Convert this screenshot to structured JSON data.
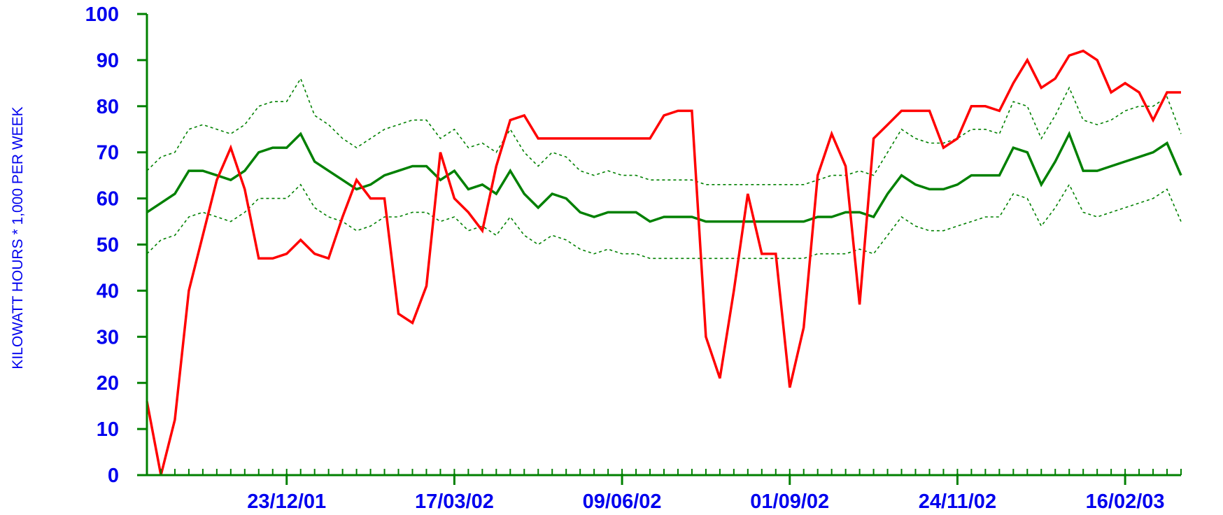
{
  "chart_data": {
    "type": "line",
    "title": "",
    "xlabel": "",
    "ylabel": "KILOWATT HOURS * 1,000 PER WEEK",
    "ylim": [
      0,
      100
    ],
    "y_ticks": [
      0,
      10,
      20,
      30,
      40,
      50,
      60,
      70,
      80,
      90,
      100
    ],
    "x_tick_labels": [
      "23/12/01",
      "17/03/02",
      "09/06/02",
      "01/09/02",
      "24/11/02",
      "16/02/03"
    ],
    "grid": false,
    "legend": "none",
    "colors": {
      "axis": "#008000",
      "tick_text": "#0000ee",
      "actual": "#ff0000",
      "average": "#008000",
      "band": "#008000"
    },
    "series": [
      {
        "style": "solid-red",
        "values": [
          16,
          0,
          12,
          40,
          52,
          64,
          71,
          62,
          47,
          47,
          48,
          51,
          48,
          47,
          56,
          64,
          60,
          60,
          35,
          33,
          41,
          70,
          60,
          57,
          53,
          67,
          77,
          78,
          73,
          73,
          73,
          73,
          73,
          73,
          73,
          73,
          73,
          78,
          79,
          79,
          30,
          21,
          40,
          61,
          48,
          48,
          19,
          32,
          65,
          74,
          67,
          37,
          73,
          76,
          79,
          79,
          79,
          71,
          73,
          80,
          80,
          79,
          85,
          90,
          84,
          86,
          91,
          92,
          90,
          83,
          85,
          83,
          77,
          83,
          83
        ]
      },
      {
        "style": "solid-green",
        "values": [
          57,
          59,
          61,
          66,
          66,
          65,
          64,
          66,
          70,
          71,
          71,
          74,
          68,
          66,
          64,
          62,
          63,
          65,
          66,
          67,
          67,
          64,
          66,
          62,
          63,
          61,
          66,
          61,
          58,
          61,
          60,
          57,
          56,
          57,
          57,
          57,
          55,
          56,
          56,
          56,
          55,
          55,
          55,
          55,
          55,
          55,
          55,
          55,
          56,
          56,
          57,
          57,
          56,
          61,
          65,
          63,
          62,
          62,
          63,
          65,
          65,
          65,
          71,
          70,
          63,
          68,
          74,
          66,
          66,
          67,
          68,
          69,
          70,
          72,
          65
        ]
      },
      {
        "style": "dashed-upper",
        "values": [
          66,
          69,
          70,
          75,
          76,
          75,
          74,
          76,
          80,
          81,
          81,
          86,
          78,
          76,
          73,
          71,
          73,
          75,
          76,
          77,
          77,
          73,
          75,
          71,
          72,
          70,
          75,
          70,
          67,
          70,
          69,
          66,
          65,
          66,
          65,
          65,
          64,
          64,
          64,
          64,
          63,
          63,
          63,
          63,
          63,
          63,
          63,
          63,
          64,
          65,
          65,
          66,
          65,
          70,
          75,
          73,
          72,
          72,
          73,
          75,
          75,
          74,
          81,
          80,
          73,
          78,
          84,
          77,
          76,
          77,
          79,
          80,
          80,
          82,
          74
        ]
      },
      {
        "style": "dashed-lower",
        "values": [
          48,
          51,
          52,
          56,
          57,
          56,
          55,
          57,
          60,
          60,
          60,
          63,
          58,
          56,
          55,
          53,
          54,
          56,
          56,
          57,
          57,
          55,
          56,
          53,
          54,
          52,
          56,
          52,
          50,
          52,
          51,
          49,
          48,
          49,
          48,
          48,
          47,
          47,
          47,
          47,
          47,
          47,
          47,
          47,
          47,
          47,
          47,
          47,
          48,
          48,
          48,
          49,
          48,
          52,
          56,
          54,
          53,
          53,
          54,
          55,
          56,
          56,
          61,
          60,
          54,
          58,
          63,
          57,
          56,
          57,
          58,
          59,
          60,
          62,
          55
        ]
      }
    ]
  }
}
